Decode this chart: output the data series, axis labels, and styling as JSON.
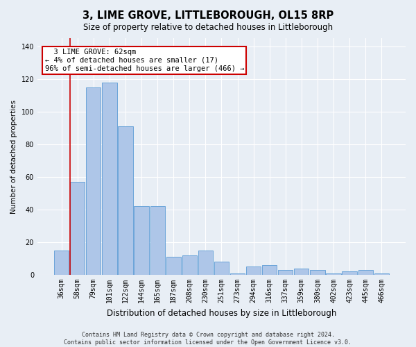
{
  "title": "3, LIME GROVE, LITTLEBOROUGH, OL15 8RP",
  "subtitle": "Size of property relative to detached houses in Littleborough",
  "xlabel": "Distribution of detached houses by size in Littleborough",
  "ylabel": "Number of detached properties",
  "categories": [
    "36sqm",
    "58sqm",
    "79sqm",
    "101sqm",
    "122sqm",
    "144sqm",
    "165sqm",
    "187sqm",
    "208sqm",
    "230sqm",
    "251sqm",
    "273sqm",
    "294sqm",
    "316sqm",
    "337sqm",
    "359sqm",
    "380sqm",
    "402sqm",
    "423sqm",
    "445sqm",
    "466sqm"
  ],
  "values": [
    15,
    57,
    115,
    118,
    91,
    42,
    42,
    11,
    12,
    15,
    8,
    1,
    5,
    6,
    3,
    4,
    3,
    1,
    2,
    3,
    1
  ],
  "bar_color": "#aec6e8",
  "bar_edge_color": "#5b9bd5",
  "annotation_text": "  3 LIME GROVE: 62sqm\n← 4% of detached houses are smaller (17)\n96% of semi-detached houses are larger (466) →",
  "annotation_box_color": "#ffffff",
  "annotation_box_edge_color": "#cc0000",
  "ylim": [
    0,
    145
  ],
  "yticks": [
    0,
    20,
    40,
    60,
    80,
    100,
    120,
    140
  ],
  "bg_color": "#e8eef5",
  "plot_bg_color": "#e8eef5",
  "grid_color": "#ffffff",
  "footer_text": "Contains HM Land Registry data © Crown copyright and database right 2024.\nContains public sector information licensed under the Open Government Licence v3.0.",
  "title_fontsize": 10.5,
  "subtitle_fontsize": 8.5,
  "xlabel_fontsize": 8.5,
  "ylabel_fontsize": 7.5,
  "tick_fontsize": 7,
  "annotation_fontsize": 7.5,
  "footer_fontsize": 6
}
